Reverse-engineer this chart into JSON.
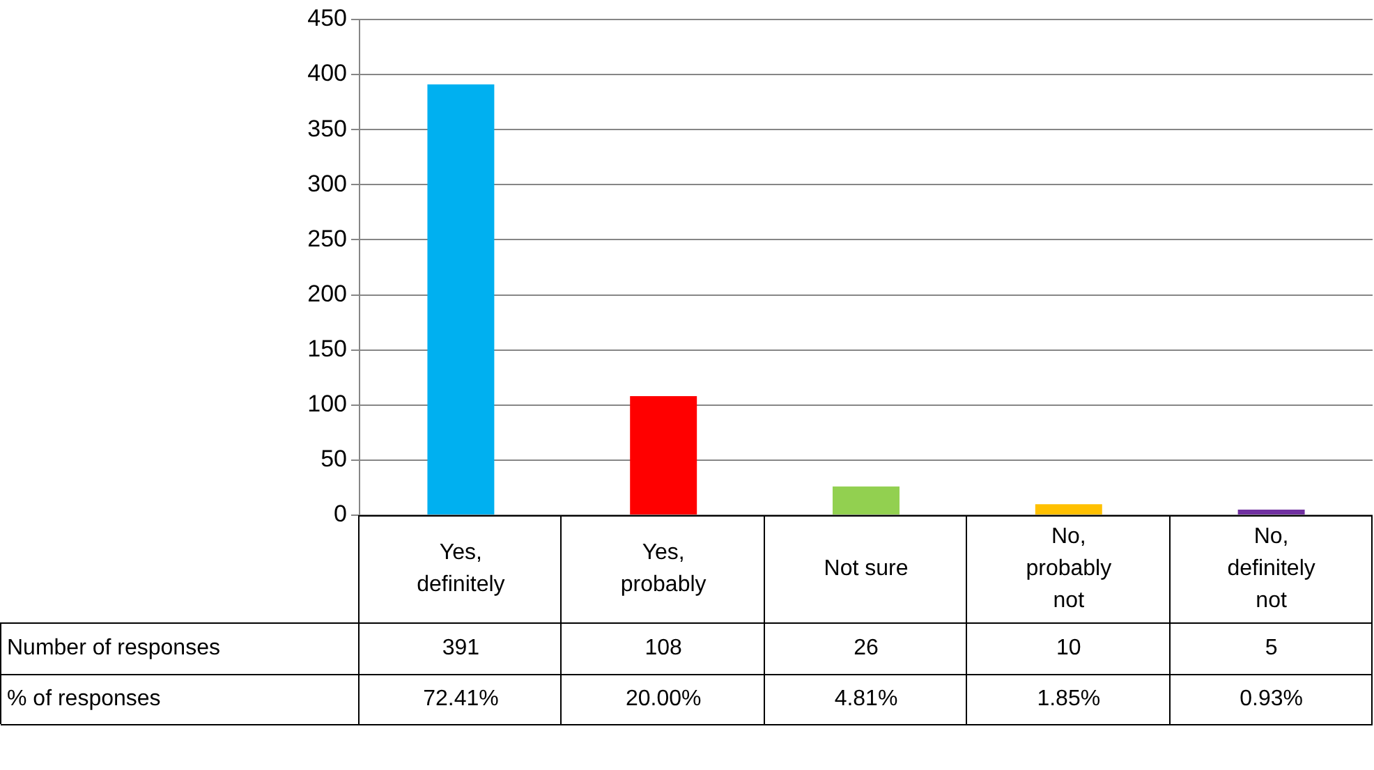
{
  "chart_data": {
    "type": "bar",
    "categories": [
      "Yes, definitely",
      "Yes, probably",
      "Not sure",
      "No, probably not",
      "No, definitely not"
    ],
    "series": [
      {
        "name": "Number of responses",
        "colors": [
          "#00b0f0",
          "#ff0000",
          "#92d050",
          "#ffc000",
          "#7030a0"
        ],
        "values": [
          391,
          108,
          26,
          10,
          5
        ]
      }
    ],
    "ylim": [
      0,
      450
    ],
    "yticks": [
      0,
      50,
      100,
      150,
      200,
      250,
      300,
      350,
      400,
      450
    ],
    "grid": "y",
    "legend": false,
    "data_labels": true,
    "annotations": [
      "% of responses",
      "72.41%",
      "20.00%",
      "4.81%",
      "1.85%",
      "0.93%"
    ]
  }
}
